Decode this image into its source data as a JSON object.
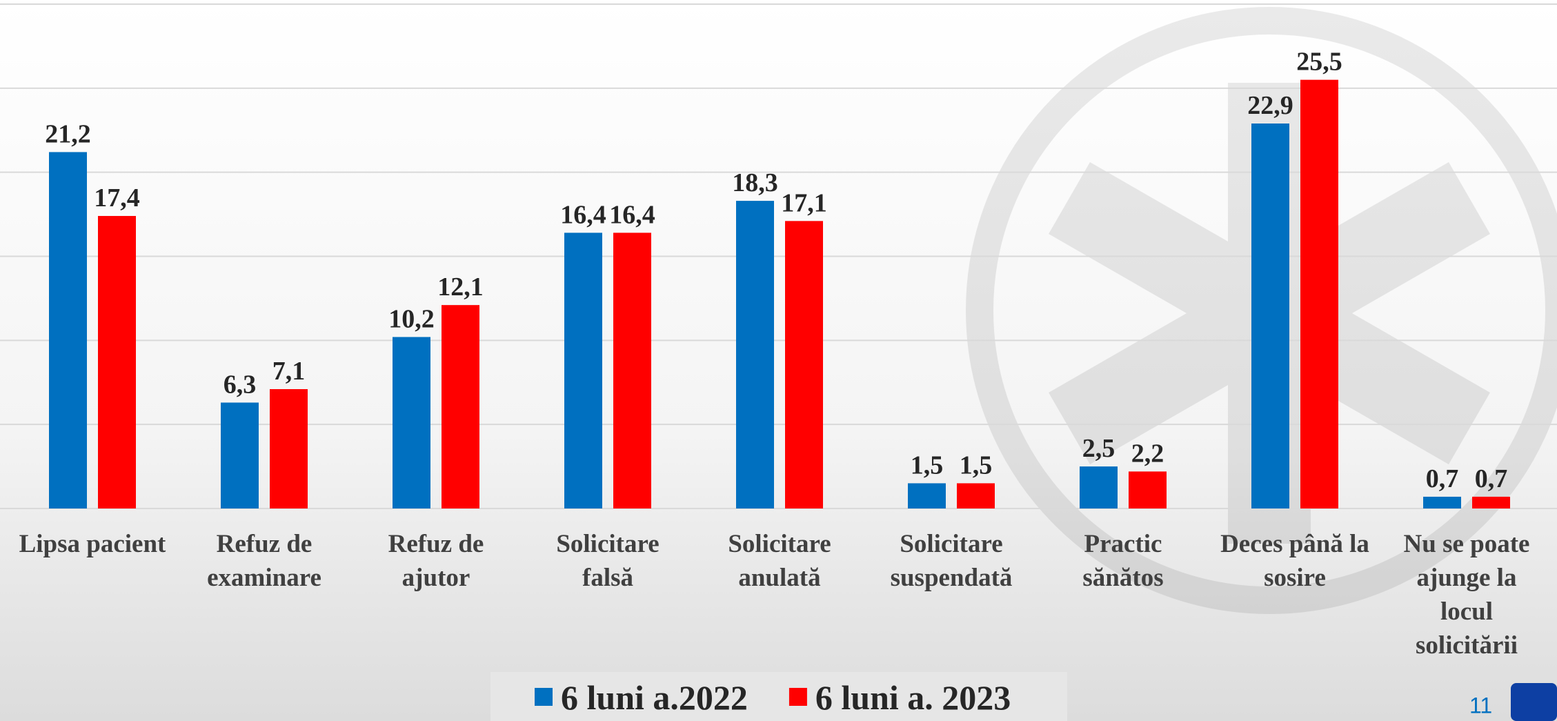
{
  "chart_data": {
    "type": "bar",
    "categories": [
      "Lipsa pacient",
      "Refuz de examinare",
      "Refuz de ajutor",
      "Solicitare falsă",
      "Solicitare anulată",
      "Solicitare suspendată",
      "Practic sănătos",
      "Deces până la sosire",
      "Nu se poate ajunge la locul solicitării"
    ],
    "series": [
      {
        "name": "6 luni a.2022",
        "color": "#0070c0",
        "values": [
          21.2,
          6.3,
          10.2,
          16.4,
          18.3,
          1.5,
          2.5,
          22.9,
          0.7
        ],
        "value_labels": [
          "21,2",
          "6,3",
          "10,2",
          "16,4",
          "18,3",
          "1,5",
          "2,5",
          "22,9",
          "0,7"
        ]
      },
      {
        "name": "6 luni a. 2023",
        "color": "#ff0000",
        "values": [
          17.4,
          7.1,
          12.1,
          16.4,
          17.1,
          1.5,
          2.2,
          25.5,
          0.7
        ],
        "value_labels": [
          "17,4",
          "7,1",
          "12,1",
          "16,4",
          "17,1",
          "1,5",
          "2,2",
          "25,5",
          "0,7"
        ]
      }
    ],
    "ylim": [
      0,
      30
    ],
    "yticks": [
      0,
      5,
      10,
      15,
      20,
      25,
      30
    ],
    "grid": true,
    "legend": "bottom"
  },
  "page_number": "11"
}
